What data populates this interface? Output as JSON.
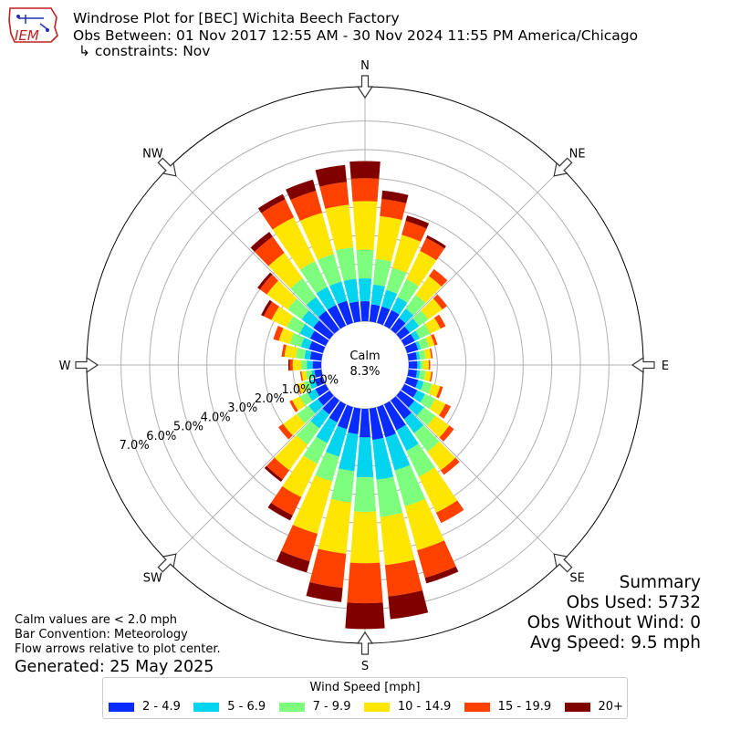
{
  "header": {
    "title": "Windrose Plot for [BEC] Wichita Beech Factory",
    "obs_between": "Obs Between: 01 Nov 2017 12:55 AM - 30 Nov 2024 11:55 PM America/Chicago",
    "constraints": "↳ constraints: Nov",
    "logo_text": "IEM"
  },
  "summary": {
    "heading": "Summary",
    "obs_used": "Obs Used: 5732",
    "obs_without_wind": "Obs Without Wind: 0",
    "avg_speed": "Avg Speed: 9.5 mph"
  },
  "notes": {
    "calm_note": "Calm values are < 2.0 mph",
    "bar_convention": "Bar Convention: Meteorology",
    "flow_arrows": "Flow arrows relative to plot center.",
    "generated": "Generated: 25 May 2025"
  },
  "chart_data": {
    "type": "windrose",
    "calm_label": "Calm",
    "calm_value": "8.3%",
    "calm_percent": 8.3,
    "radial_ticks": [
      "0.0%",
      "1.0%",
      "2.0%",
      "3.0%",
      "4.0%",
      "5.0%",
      "6.0%",
      "7.0%"
    ],
    "radial_max": 8.2,
    "compass_labels": [
      "N",
      "NE",
      "E",
      "SE",
      "S",
      "SW",
      "W",
      "NW"
    ],
    "legend_title": "Wind Speed [mph]",
    "speed_bins": [
      "2 - 4.9",
      "5 - 6.9",
      "7 - 9.9",
      "10 - 14.9",
      "15 - 19.9",
      "20+"
    ],
    "colors": [
      "#0a2bff",
      "#00d4ee",
      "#7dfe7d",
      "#ffe600",
      "#ff4100",
      "#800000"
    ],
    "directions": [
      0,
      10,
      20,
      30,
      40,
      50,
      60,
      70,
      80,
      90,
      100,
      110,
      120,
      130,
      140,
      150,
      160,
      170,
      180,
      190,
      200,
      210,
      220,
      230,
      240,
      250,
      260,
      270,
      280,
      290,
      300,
      310,
      320,
      330,
      340,
      350
    ],
    "cumulative_percent": [
      [
        0.7,
        1.5,
        2.5,
        4.2,
        5.0,
        5.6
      ],
      [
        0.6,
        1.3,
        2.2,
        3.7,
        4.3,
        4.6
      ],
      [
        0.6,
        1.2,
        2.0,
        3.2,
        3.7,
        3.9
      ],
      [
        0.6,
        1.1,
        1.8,
        2.9,
        3.4,
        3.5
      ],
      [
        0.5,
        0.9,
        1.5,
        2.3,
        2.6,
        2.6
      ],
      [
        0.4,
        0.8,
        1.2,
        1.8,
        2.0,
        2.0
      ],
      [
        0.4,
        0.6,
        1.0,
        1.4,
        1.6,
        1.6
      ],
      [
        0.4,
        0.5,
        0.8,
        1.0,
        1.1,
        1.1
      ],
      [
        0.3,
        0.4,
        0.6,
        0.8,
        0.85,
        0.85
      ],
      [
        0.3,
        0.4,
        0.5,
        0.7,
        0.75,
        0.75
      ],
      [
        0.3,
        0.4,
        0.6,
        0.8,
        0.85,
        0.85
      ],
      [
        0.4,
        0.6,
        0.9,
        1.2,
        1.3,
        1.3
      ],
      [
        0.5,
        0.8,
        1.2,
        1.6,
        1.8,
        1.8
      ],
      [
        0.6,
        1.0,
        1.5,
        2.1,
        2.3,
        2.3
      ],
      [
        0.8,
        1.4,
        2.2,
        3.0,
        3.2,
        3.2
      ],
      [
        1.0,
        1.8,
        2.8,
        4.2,
        4.6,
        4.6
      ],
      [
        1.1,
        2.3,
        3.6,
        5.2,
        6.2,
        6.4
      ],
      [
        1.1,
        2.5,
        3.8,
        5.5,
        6.6,
        7.4
      ],
      [
        1.0,
        2.4,
        3.6,
        5.4,
        6.8,
        7.7
      ],
      [
        0.9,
        2.2,
        3.3,
        5.1,
        6.3,
        6.8
      ],
      [
        0.8,
        1.8,
        2.7,
        4.6,
        5.6,
        6.0
      ],
      [
        0.7,
        1.5,
        2.3,
        3.6,
        4.3,
        4.5
      ],
      [
        0.6,
        1.2,
        1.9,
        3.0,
        3.4,
        3.5
      ],
      [
        0.5,
        0.9,
        1.4,
        2.0,
        2.2,
        2.2
      ],
      [
        0.4,
        0.7,
        1.0,
        1.3,
        1.4,
        1.4
      ],
      [
        0.3,
        0.5,
        0.7,
        0.9,
        0.95,
        0.95
      ],
      [
        0.25,
        0.35,
        0.55,
        0.7,
        0.75,
        0.75
      ],
      [
        0.3,
        0.5,
        0.7,
        1.0,
        1.1,
        1.15
      ],
      [
        0.4,
        0.6,
        0.9,
        1.3,
        1.4,
        1.4
      ],
      [
        0.5,
        0.8,
        1.2,
        1.6,
        1.8,
        1.8
      ],
      [
        0.6,
        1.0,
        1.5,
        2.1,
        2.4,
        2.5
      ],
      [
        0.7,
        1.2,
        1.8,
        2.7,
        3.0,
        3.1
      ],
      [
        0.8,
        1.4,
        2.2,
        3.3,
        4.0,
        4.2
      ],
      [
        0.8,
        1.5,
        2.5,
        4.2,
        4.9,
        5.1
      ],
      [
        0.8,
        1.5,
        2.5,
        4.0,
        4.8,
        5.2
      ],
      [
        0.7,
        1.5,
        2.6,
        4.1,
        4.9,
        5.5
      ]
    ]
  }
}
